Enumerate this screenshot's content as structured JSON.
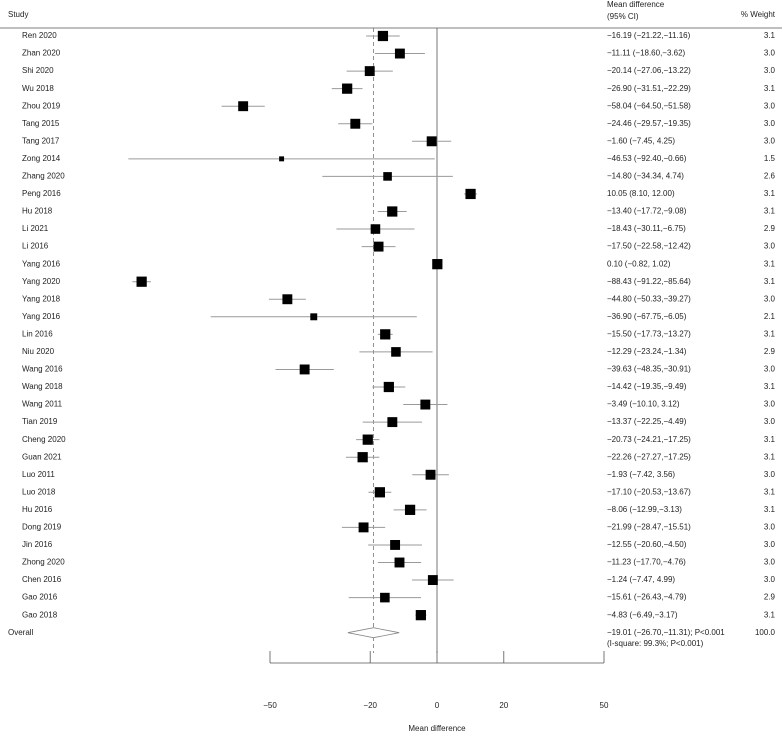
{
  "chart_data": {
    "type": "forest",
    "header": {
      "study": "Study",
      "estimate": "Mean difference",
      "estimate_sub": "(95% CI)",
      "weight": "% Weight"
    },
    "studies": [
      "Ren 2020",
      "Zhan 2020",
      "Shi 2020",
      "Wu 2018",
      "Zhou 2019",
      "Tang 2015",
      "Tang 2017",
      "Zong 2014",
      "Zhang 2020",
      "Peng 2016",
      "Hu 2018",
      "Li 2021",
      "Li 2016",
      "Yang 2016",
      "Yang 2020",
      "Yang 2018",
      "Yang 2016",
      "Lin 2016",
      "Niu 2020",
      "Wang 2016",
      "Wang 2018",
      "Wang 2011",
      "Tian 2019",
      "Cheng 2020",
      "Guan 2021",
      "Luo 2011",
      "Luo 2018",
      "Hu 2016",
      "Dong 2019",
      "Jin 2016",
      "Zhong 2020",
      "Chen 2016",
      "Gao 2016",
      "Gao 2018"
    ],
    "values": [
      -16.19,
      -11.11,
      -20.14,
      -26.9,
      -58.04,
      -24.46,
      -1.6,
      -46.53,
      -14.8,
      10.05,
      -13.4,
      -18.43,
      -17.5,
      0.1,
      -88.43,
      -44.8,
      -36.9,
      -15.5,
      -12.29,
      -39.63,
      -14.42,
      -3.49,
      -13.37,
      -20.73,
      -22.26,
      -1.93,
      -17.1,
      -8.06,
      -21.99,
      -12.55,
      -11.23,
      -1.24,
      -15.61,
      -4.83
    ],
    "lower": [
      -21.22,
      -18.6,
      -27.06,
      -31.51,
      -64.5,
      -29.57,
      -7.45,
      -92.4,
      -34.34,
      8.1,
      -17.72,
      -30.11,
      -22.58,
      -0.82,
      -91.22,
      -50.33,
      -67.75,
      -17.73,
      -23.24,
      -48.35,
      -19.35,
      -10.1,
      -22.25,
      -24.21,
      -27.27,
      -7.42,
      -20.53,
      -12.99,
      -28.47,
      -20.6,
      -17.7,
      -7.47,
      -26.43,
      -6.49
    ],
    "upper": [
      -11.16,
      -3.62,
      -13.22,
      -22.29,
      -51.58,
      -19.35,
      4.25,
      -0.66,
      4.74,
      12.0,
      -9.08,
      -6.75,
      -12.42,
      1.02,
      -85.64,
      -39.27,
      -6.05,
      -13.27,
      -1.34,
      -30.91,
      -9.49,
      3.12,
      -4.49,
      -17.25,
      -17.25,
      3.56,
      -13.67,
      -3.13,
      -15.51,
      -4.5,
      -4.76,
      4.99,
      -4.79,
      -3.17
    ],
    "value_labels": [
      "−16.19 (−21.22,−11.16)",
      "−11.11 (−18.60,−3.62)",
      "−20.14 (−27.06,−13.22)",
      "−26.90 (−31.51,−22.29)",
      "−58.04 (−64.50,−51.58)",
      "−24.46 (−29.57,−19.35)",
      "−1.60 (−7.45, 4.25)",
      "−46.53 (−92.40,−0.66)",
      "−14.80 (−34.34, 4.74)",
      "10.05 (8.10, 12.00)",
      "−13.40 (−17.72,−9.08)",
      "−18.43 (−30.11,−6.75)",
      "−17.50 (−22.58,−12.42)",
      "0.10 (−0.82, 1.02)",
      "−88.43 (−91.22,−85.64)",
      "−44.80 (−50.33,−39.27)",
      "−36.90 (−67.75,−6.05)",
      "−15.50 (−17.73,−13.27)",
      "−12.29 (−23.24,−1.34)",
      "−39.63 (−48.35,−30.91)",
      "−14.42 (−19.35,−9.49)",
      "−3.49 (−10.10, 3.12)",
      "−13.37 (−22.25,−4.49)",
      "−20.73 (−24.21,−17.25)",
      "−22.26 (−27.27,−17.25)",
      "−1.93 (−7.42, 3.56)",
      "−17.10 (−20.53,−13.67)",
      "−8.06 (−12.99,−3.13)",
      "−21.99 (−28.47,−15.51)",
      "−12.55 (−20.60,−4.50)",
      "−11.23 (−17.70,−4.76)",
      "−1.24 (−7.47, 4.99)",
      "−15.61 (−26.43,−4.79)",
      "−4.83 (−6.49,−3.17)"
    ],
    "weights": [
      3.1,
      3.0,
      3.0,
      3.1,
      3.0,
      3.0,
      3.0,
      1.5,
      2.6,
      3.1,
      3.1,
      2.9,
      3.0,
      3.1,
      3.1,
      3.0,
      2.1,
      3.1,
      2.9,
      3.0,
      3.1,
      3.0,
      3.0,
      3.1,
      3.1,
      3.0,
      3.1,
      3.1,
      3.0,
      3.0,
      3.0,
      3.0,
      2.9,
      3.1
    ],
    "weight_labels": [
      "3.1",
      "3.0",
      "3.0",
      "3.1",
      "3.0",
      "3.0",
      "3.0",
      "1.5",
      "2.6",
      "3.1",
      "3.1",
      "2.9",
      "3.0",
      "3.1",
      "3.1",
      "3.0",
      "2.1",
      "3.1",
      "2.9",
      "3.0",
      "3.1",
      "3.0",
      "3.0",
      "3.1",
      "3.1",
      "3.0",
      "3.1",
      "3.1",
      "3.0",
      "3.0",
      "3.0",
      "3.0",
      "2.9",
      "3.1"
    ],
    "overall": {
      "name": "Overall",
      "value": -19.01,
      "lower": -26.7,
      "upper": -11.31,
      "value_label": "−19.01 (−26.70,−11.31); P<0.001",
      "note": "(I-square: 99.3%; P<0.001)",
      "weight": 100,
      "weight_label": "100.0"
    },
    "null_line": 0,
    "xlim": [
      -50,
      50
    ],
    "xticks": [
      {
        "value": -50,
        "label": "−50"
      },
      {
        "value": -20,
        "label": "−20"
      },
      0,
      20,
      50
    ],
    "xlabel": "Mean difference",
    "marker_color": "#000000",
    "ci_color": "#9a9a9a"
  }
}
